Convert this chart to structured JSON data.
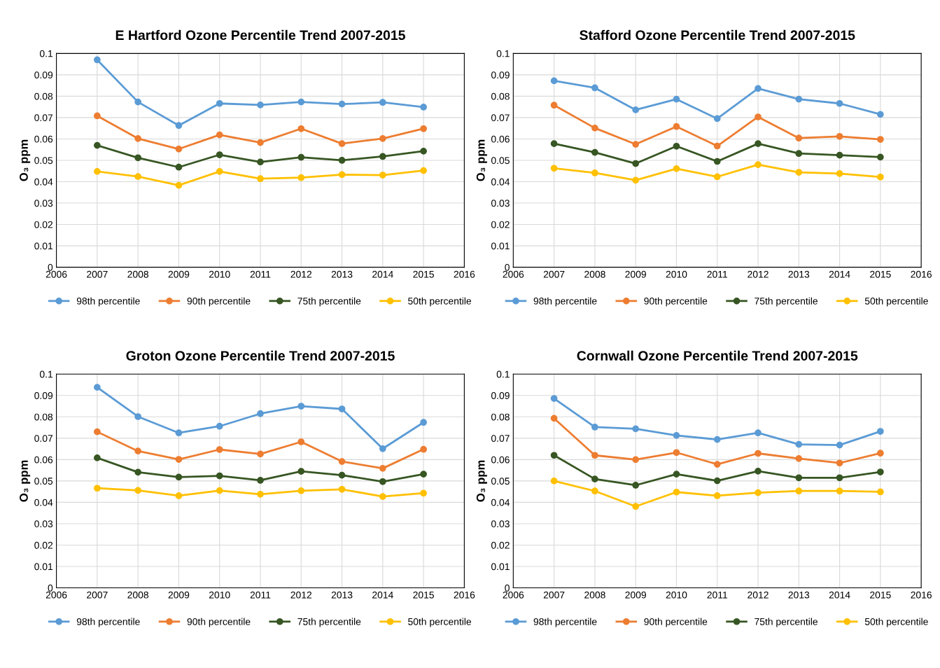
{
  "chart_data": [
    {
      "type": "line",
      "title": "E Hartford Ozone Percentile Trend 2007-2015",
      "ylabel": "O₃ ppm",
      "x": [
        2007,
        2008,
        2009,
        2010,
        2011,
        2012,
        2013,
        2014,
        2015
      ],
      "xlim": [
        2006,
        2016
      ],
      "xticks": [
        2006,
        2007,
        2008,
        2009,
        2010,
        2011,
        2012,
        2013,
        2014,
        2015,
        2016
      ],
      "ylim": [
        0,
        0.1
      ],
      "yticks": [
        0,
        0.01,
        0.02,
        0.03,
        0.04,
        0.05,
        0.06,
        0.07,
        0.08,
        0.09,
        0.1
      ],
      "grid": true,
      "legend": "bottom",
      "marker": "circle",
      "line_style": "solid",
      "series": [
        {
          "name": "98th percentile",
          "color": "#5b9bd5",
          "values": [
            0.097,
            0.0773,
            0.0663,
            0.0766,
            0.0759,
            0.0773,
            0.0763,
            0.0771,
            0.0749
          ]
        },
        {
          "name": "90th percentile",
          "color": "#ed7d31",
          "values": [
            0.0708,
            0.0602,
            0.0553,
            0.0619,
            0.0583,
            0.0648,
            0.0578,
            0.0602,
            0.0648
          ]
        },
        {
          "name": "75th percentile",
          "color": "#375623",
          "values": [
            0.057,
            0.0512,
            0.0468,
            0.0526,
            0.0492,
            0.0514,
            0.05,
            0.0518,
            0.0543
          ]
        },
        {
          "name": "50th percentile",
          "color": "#ffc000",
          "values": [
            0.0448,
            0.0424,
            0.0383,
            0.0448,
            0.0414,
            0.0419,
            0.0433,
            0.0431,
            0.0452
          ]
        }
      ]
    },
    {
      "type": "line",
      "title": "Stafford Ozone Percentile Trend 2007-2015",
      "ylabel": "O₃ ppm",
      "x": [
        2007,
        2008,
        2009,
        2010,
        2011,
        2012,
        2013,
        2014,
        2015
      ],
      "xlim": [
        2006,
        2016
      ],
      "xticks": [
        2006,
        2007,
        2008,
        2009,
        2010,
        2011,
        2012,
        2013,
        2014,
        2015,
        2016
      ],
      "ylim": [
        0,
        0.1
      ],
      "yticks": [
        0,
        0.01,
        0.02,
        0.03,
        0.04,
        0.05,
        0.06,
        0.07,
        0.08,
        0.09,
        0.1
      ],
      "grid": true,
      "legend": "bottom",
      "marker": "circle",
      "line_style": "solid",
      "series": [
        {
          "name": "98th percentile",
          "color": "#5b9bd5",
          "values": [
            0.0872,
            0.0839,
            0.0736,
            0.0786,
            0.0695,
            0.0836,
            0.0786,
            0.0766,
            0.0715
          ]
        },
        {
          "name": "90th percentile",
          "color": "#ed7d31",
          "values": [
            0.0758,
            0.0651,
            0.0575,
            0.0658,
            0.0567,
            0.0703,
            0.0604,
            0.0612,
            0.0598
          ]
        },
        {
          "name": "75th percentile",
          "color": "#375623",
          "values": [
            0.0578,
            0.0537,
            0.0485,
            0.0566,
            0.0495,
            0.0578,
            0.0532,
            0.0524,
            0.0515
          ]
        },
        {
          "name": "50th percentile",
          "color": "#ffc000",
          "values": [
            0.0463,
            0.0441,
            0.0407,
            0.0461,
            0.0423,
            0.048,
            0.0444,
            0.0438,
            0.0422
          ]
        }
      ]
    },
    {
      "type": "line",
      "title": "Groton Ozone Percentile Trend 2007-2015",
      "ylabel": "O₃ ppm",
      "x": [
        2007,
        2008,
        2009,
        2010,
        2011,
        2012,
        2013,
        2014,
        2015
      ],
      "xlim": [
        2006,
        2016
      ],
      "xticks": [
        2006,
        2007,
        2008,
        2009,
        2010,
        2011,
        2012,
        2013,
        2014,
        2015,
        2016
      ],
      "ylim": [
        0,
        0.1
      ],
      "yticks": [
        0,
        0.01,
        0.02,
        0.03,
        0.04,
        0.05,
        0.06,
        0.07,
        0.08,
        0.09,
        0.1
      ],
      "grid": true,
      "legend": "bottom",
      "marker": "circle",
      "line_style": "solid",
      "series": [
        {
          "name": "98th percentile",
          "color": "#5b9bd5",
          "values": [
            0.0938,
            0.0801,
            0.0725,
            0.0756,
            0.0815,
            0.085,
            0.0837,
            0.0651,
            0.0774
          ]
        },
        {
          "name": "90th percentile",
          "color": "#ed7d31",
          "values": [
            0.073,
            0.064,
            0.0601,
            0.0647,
            0.0626,
            0.0683,
            0.0591,
            0.0559,
            0.0648
          ]
        },
        {
          "name": "75th percentile",
          "color": "#375623",
          "values": [
            0.0608,
            0.0541,
            0.0518,
            0.0524,
            0.0503,
            0.0545,
            0.0527,
            0.0497,
            0.0532
          ]
        },
        {
          "name": "50th percentile",
          "color": "#ffc000",
          "values": [
            0.0466,
            0.0456,
            0.0431,
            0.0455,
            0.0438,
            0.0454,
            0.0461,
            0.0427,
            0.0443
          ]
        }
      ]
    },
    {
      "type": "line",
      "title": "Cornwall Ozone Percentile Trend 2007-2015",
      "ylabel": "O₃ ppm",
      "x": [
        2007,
        2008,
        2009,
        2010,
        2011,
        2012,
        2013,
        2014,
        2015
      ],
      "xlim": [
        2006,
        2016
      ],
      "xticks": [
        2006,
        2007,
        2008,
        2009,
        2010,
        2011,
        2012,
        2013,
        2014,
        2015,
        2016
      ],
      "ylim": [
        0,
        0.1
      ],
      "yticks": [
        0,
        0.01,
        0.02,
        0.03,
        0.04,
        0.05,
        0.06,
        0.07,
        0.08,
        0.09,
        0.1
      ],
      "grid": true,
      "legend": "bottom",
      "marker": "circle",
      "line_style": "solid",
      "series": [
        {
          "name": "98th percentile",
          "color": "#5b9bd5",
          "values": [
            0.0886,
            0.0752,
            0.0744,
            0.0713,
            0.0694,
            0.0725,
            0.0671,
            0.0668,
            0.0732
          ]
        },
        {
          "name": "90th percentile",
          "color": "#ed7d31",
          "values": [
            0.0793,
            0.062,
            0.06,
            0.0633,
            0.0578,
            0.0629,
            0.0605,
            0.0584,
            0.063
          ]
        },
        {
          "name": "75th percentile",
          "color": "#375623",
          "values": [
            0.062,
            0.0509,
            0.048,
            0.0532,
            0.0501,
            0.0546,
            0.0515,
            0.0515,
            0.0542
          ]
        },
        {
          "name": "50th percentile",
          "color": "#ffc000",
          "values": [
            0.05,
            0.0453,
            0.0381,
            0.0448,
            0.0431,
            0.0445,
            0.0453,
            0.0453,
            0.0449
          ]
        }
      ]
    }
  ]
}
